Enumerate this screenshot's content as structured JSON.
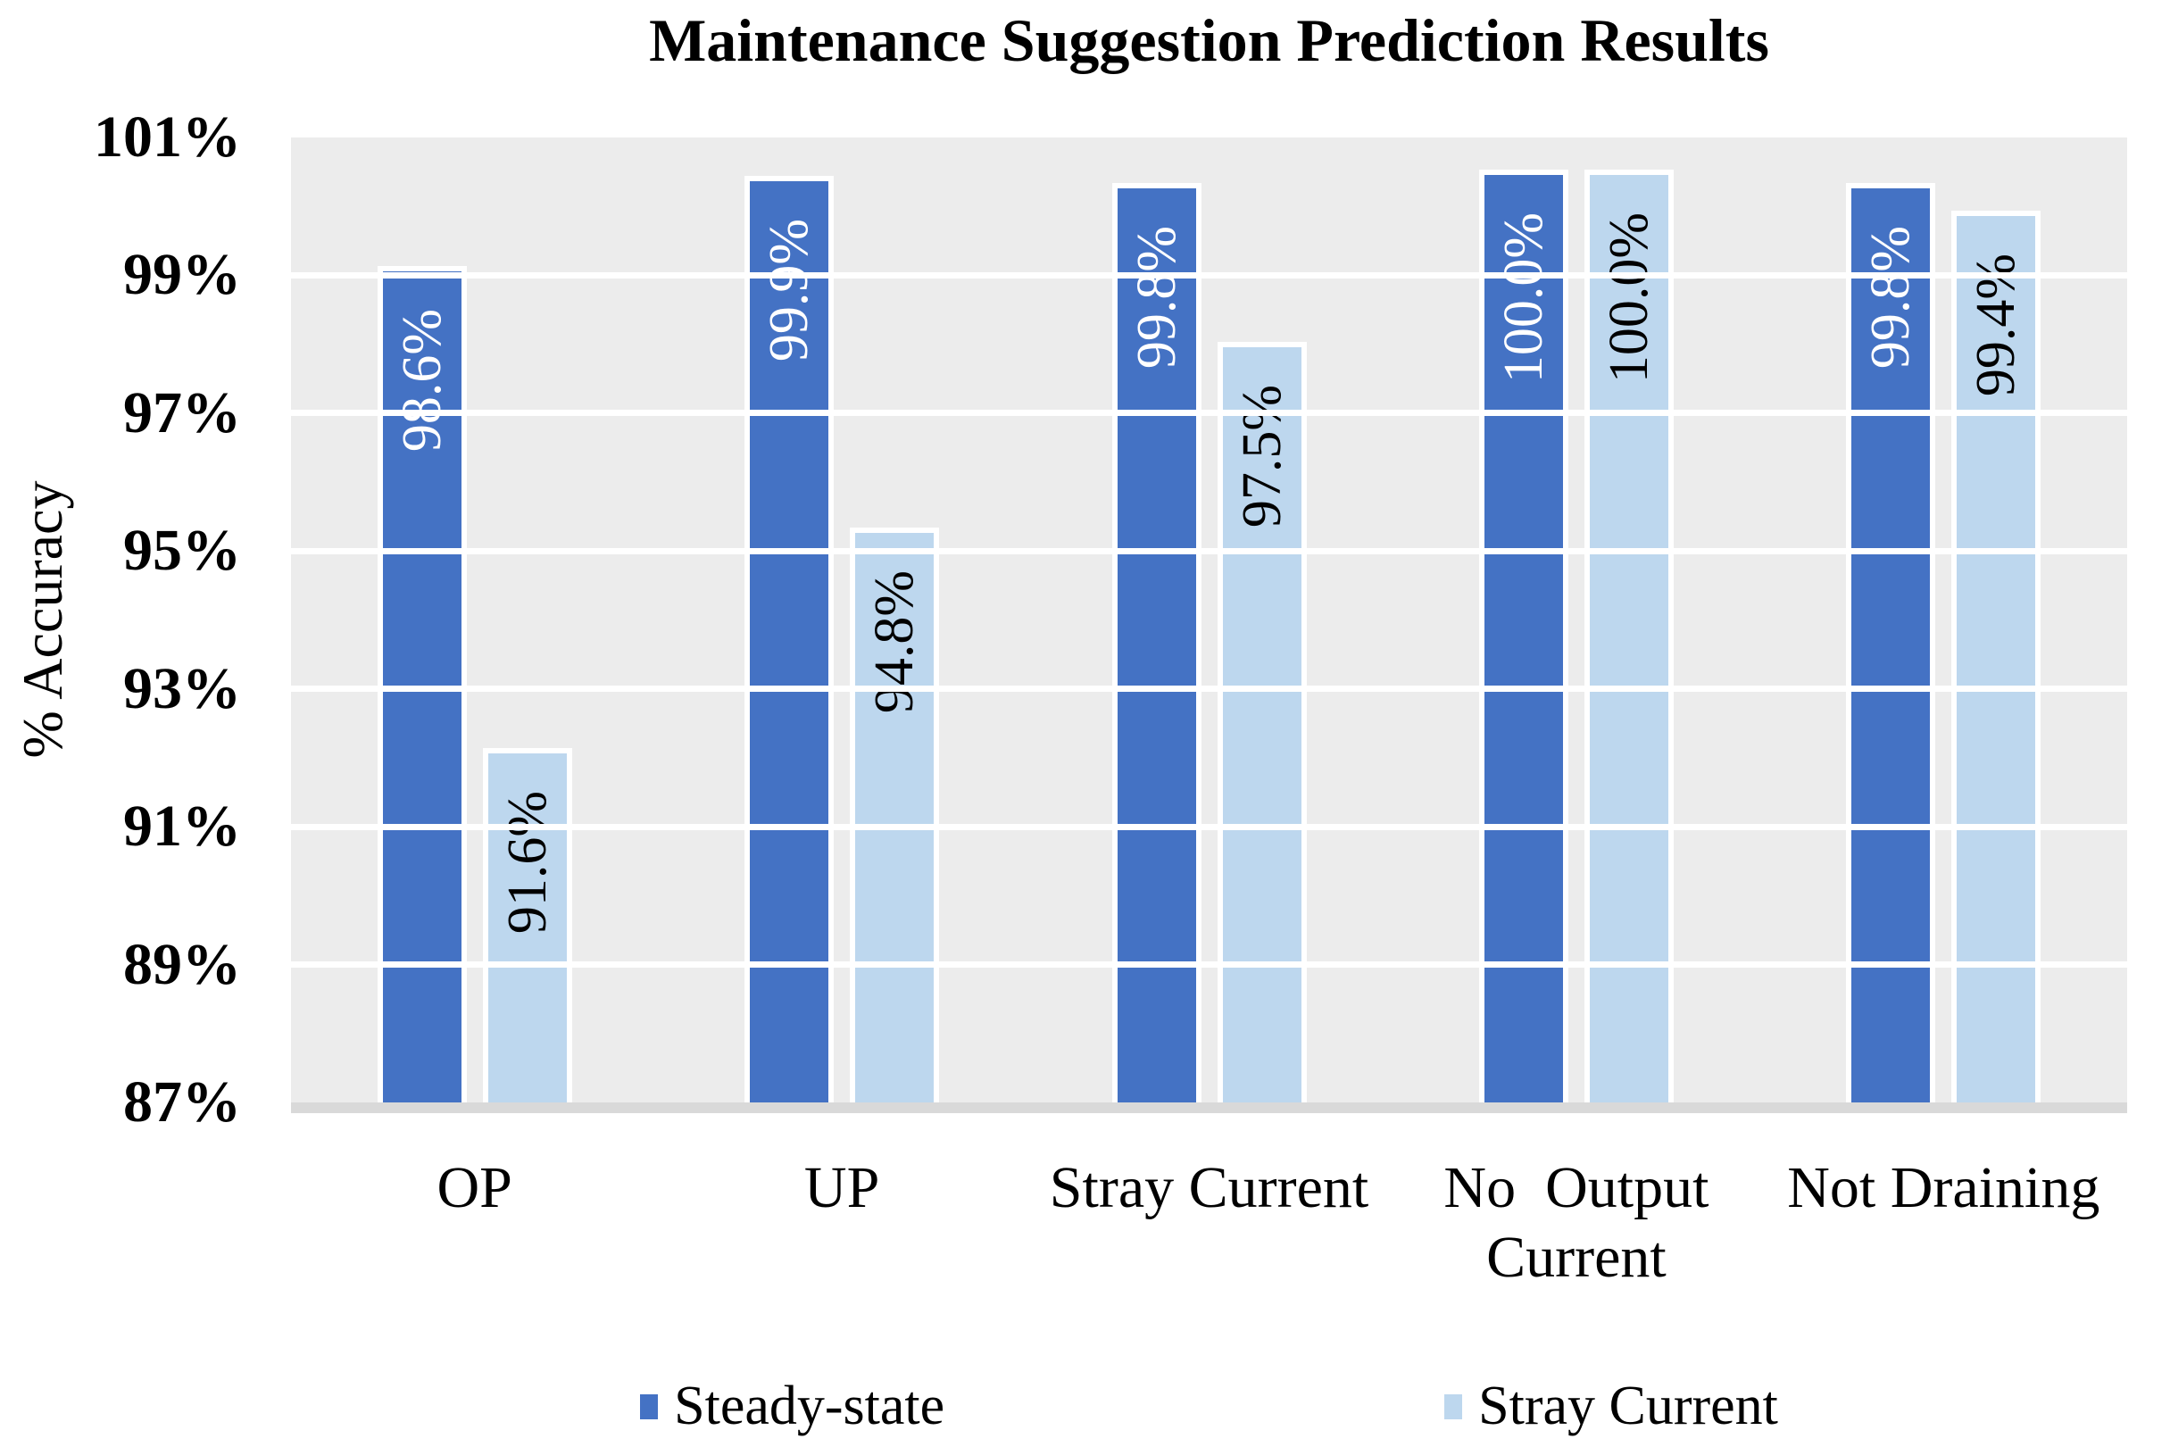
{
  "chart_data": {
    "type": "bar",
    "title": "Maintenance Suggestion Prediction Results",
    "ylabel": "% Accuracy",
    "ylim": [
      87,
      101
    ],
    "ytick_step": 2,
    "yticks": [
      "101%",
      "99%",
      "97%",
      "95%",
      "93%",
      "91%",
      "89%",
      "87%"
    ],
    "categories": [
      "OP",
      "UP",
      "Stray Current",
      "No  Output Current",
      "Not Draining"
    ],
    "series": [
      {
        "name": "Steady-state",
        "color": "#4472C4",
        "label_color": "#FFFFFF",
        "values": [
          98.6,
          99.9,
          99.8,
          100.0,
          99.8
        ],
        "labels": [
          "98.6%",
          "99.9%",
          "99.8%",
          "100.0%",
          "99.8%"
        ]
      },
      {
        "name": "Stray Current",
        "color": "#BDD7EE",
        "label_color": "#000000",
        "values": [
          91.6,
          94.8,
          97.5,
          100.0,
          99.4
        ],
        "labels": [
          "91.6%",
          "94.8%",
          "97.5%",
          "100.0%",
          "99.4%"
        ]
      }
    ],
    "grid": true,
    "legend_position": "bottom",
    "plot_bg": "#ECECEC",
    "gridline_color": "#FFFFFF",
    "axis_line_color": "#D9D9D9"
  }
}
